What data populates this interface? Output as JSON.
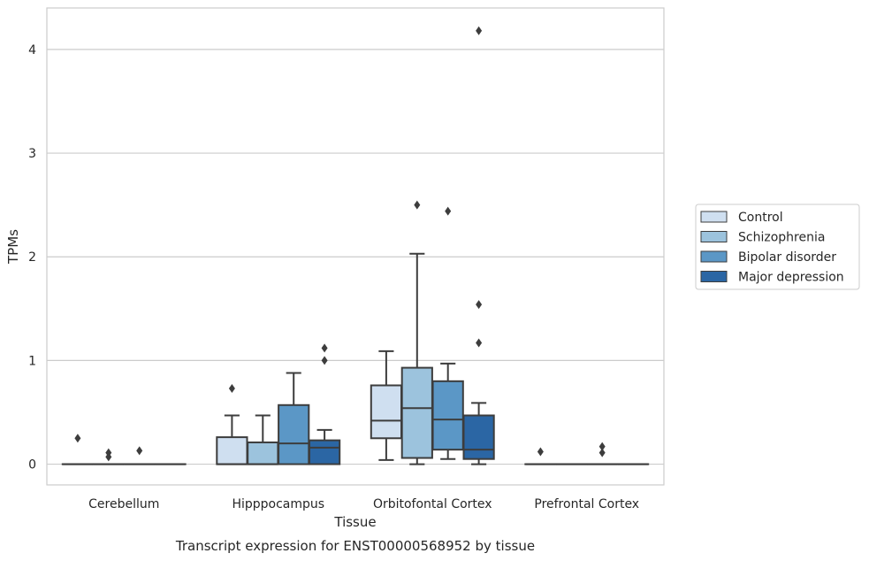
{
  "chart_data": {
    "type": "boxplot",
    "title": "Transcript expression for ENST00000568952 by tissue",
    "xlabel": "Tissue",
    "ylabel": "TPMs",
    "ylim": [
      -0.2,
      4.4
    ],
    "yticks": [
      0,
      1,
      2,
      3,
      4
    ],
    "grid": true,
    "legend_position": "right",
    "categories": [
      "Cerebellum",
      "Hipppocampus",
      "Orbitofontal Cortex",
      "Prefrontal Cortex"
    ],
    "series": [
      {
        "name": "Control",
        "color": "#cfdff0",
        "boxes": [
          {
            "q1": 0,
            "median": 0,
            "q3": 0,
            "whisker_low": 0,
            "whisker_high": 0,
            "outliers": [
              0.25
            ]
          },
          {
            "q1": 0,
            "median": 0,
            "q3": 0.26,
            "whisker_low": 0,
            "whisker_high": 0.47,
            "outliers": [
              0.73
            ]
          },
          {
            "q1": 0.25,
            "median": 0.42,
            "q3": 0.76,
            "whisker_low": 0.04,
            "whisker_high": 1.09,
            "outliers": []
          },
          {
            "q1": 0,
            "median": 0,
            "q3": 0,
            "whisker_low": 0,
            "whisker_high": 0,
            "outliers": [
              0.12
            ]
          }
        ]
      },
      {
        "name": "Schizophrenia",
        "color": "#9cc3dd",
        "boxes": [
          {
            "q1": 0,
            "median": 0,
            "q3": 0,
            "whisker_low": 0,
            "whisker_high": 0,
            "outliers": [
              0.07,
              0.11
            ]
          },
          {
            "q1": 0,
            "median": 0,
            "q3": 0.21,
            "whisker_low": 0,
            "whisker_high": 0.47,
            "outliers": []
          },
          {
            "q1": 0.06,
            "median": 0.54,
            "q3": 0.93,
            "whisker_low": 0,
            "whisker_high": 2.03,
            "outliers": [
              2.5
            ]
          },
          {
            "q1": 0,
            "median": 0,
            "q3": 0,
            "whisker_low": 0,
            "whisker_high": 0,
            "outliers": []
          }
        ]
      },
      {
        "name": "Bipolar disorder",
        "color": "#5b97c6",
        "boxes": [
          {
            "q1": 0,
            "median": 0,
            "q3": 0,
            "whisker_low": 0,
            "whisker_high": 0,
            "outliers": [
              0.13
            ]
          },
          {
            "q1": 0,
            "median": 0.2,
            "q3": 0.57,
            "whisker_low": 0,
            "whisker_high": 0.88,
            "outliers": []
          },
          {
            "q1": 0.14,
            "median": 0.43,
            "q3": 0.8,
            "whisker_low": 0.05,
            "whisker_high": 0.97,
            "outliers": [
              2.44
            ]
          },
          {
            "q1": 0,
            "median": 0,
            "q3": 0,
            "whisker_low": 0,
            "whisker_high": 0,
            "outliers": [
              0.11,
              0.17
            ]
          }
        ]
      },
      {
        "name": "Major depression",
        "color": "#2b66a4",
        "boxes": [
          {
            "q1": 0,
            "median": 0,
            "q3": 0,
            "whisker_low": 0,
            "whisker_high": 0,
            "outliers": []
          },
          {
            "q1": 0,
            "median": 0.16,
            "q3": 0.23,
            "whisker_low": 0,
            "whisker_high": 0.33,
            "outliers": [
              1.0,
              1.12
            ]
          },
          {
            "q1": 0.05,
            "median": 0.14,
            "q3": 0.47,
            "whisker_low": 0,
            "whisker_high": 0.59,
            "outliers": [
              1.17,
              1.54,
              4.18
            ]
          },
          {
            "q1": 0,
            "median": 0,
            "q3": 0,
            "whisker_low": 0,
            "whisker_high": 0,
            "outliers": []
          }
        ]
      }
    ]
  }
}
